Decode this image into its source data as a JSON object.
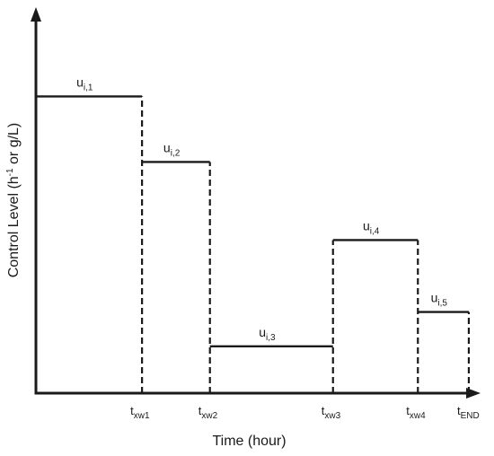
{
  "chart_data": {
    "type": "line",
    "title": "",
    "xlabel": "Time (hour)",
    "ylabel": "Control Level (h^-1 or g/L)",
    "ylabel_parts": {
      "before": "Control Level (h",
      "sup": "-1",
      "after": " or g/L)"
    },
    "xlim": [
      0,
      5.8
    ],
    "ylim": [
      0,
      1.0
    ],
    "grid": false,
    "switch_times": [
      {
        "label_main": "t",
        "label_sub": "xw1",
        "x": 1.25
      },
      {
        "label_main": "t",
        "label_sub": "xw2",
        "x": 2.05
      },
      {
        "label_main": "t",
        "label_sub": "xw3",
        "x": 3.5
      },
      {
        "label_main": "t",
        "label_sub": "xw4",
        "x": 4.5
      },
      {
        "label_main": "t",
        "label_sub": "END",
        "x": 5.1
      }
    ],
    "levels": [
      {
        "label_main": "u",
        "label_sub": "i,1",
        "x_start": 0,
        "x_end": 1.25,
        "y": 0.95
      },
      {
        "label_main": "u",
        "label_sub": "i,2",
        "x_start": 1.25,
        "x_end": 2.05,
        "y": 0.74
      },
      {
        "label_main": "u",
        "label_sub": "i,3",
        "x_start": 2.05,
        "x_end": 3.5,
        "y": 0.15
      },
      {
        "label_main": "u",
        "label_sub": "i,4",
        "x_start": 3.5,
        "x_end": 4.5,
        "y": 0.49
      },
      {
        "label_main": "u",
        "label_sub": "i,5",
        "x_start": 4.5,
        "x_end": 5.1,
        "y": 0.26
      }
    ]
  }
}
